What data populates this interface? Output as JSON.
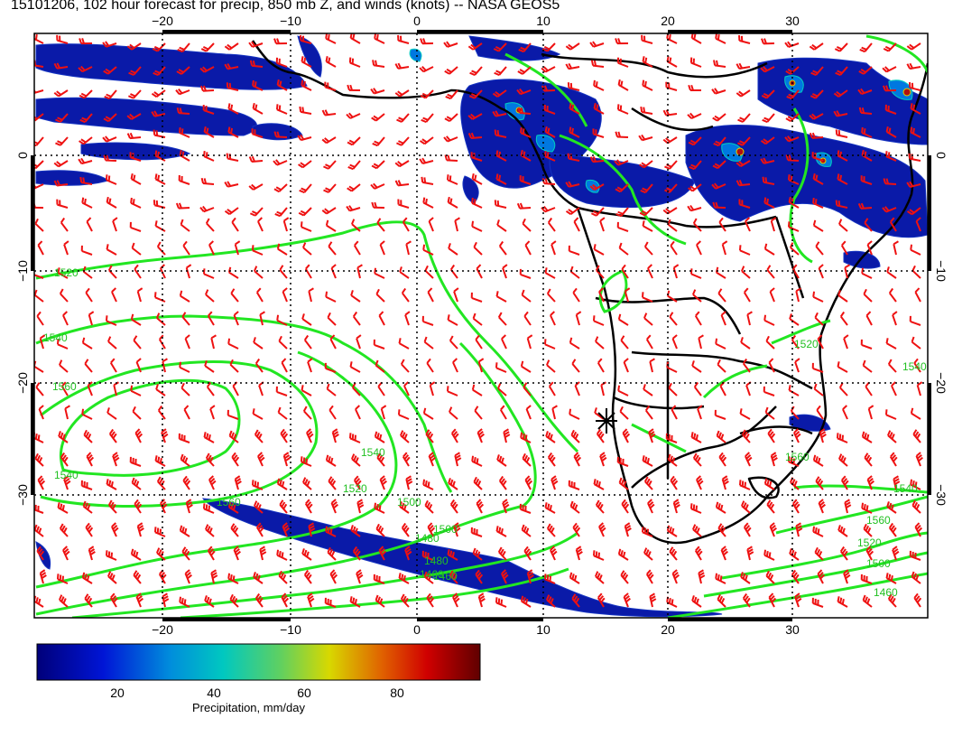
{
  "title": "15101206, 102 hour forecast for precip, 850 mb Z, and winds (knots) -- NASA GEOS5",
  "map": {
    "lon_ticks": [
      "−20",
      "−10",
      "0",
      "10",
      "20",
      "30"
    ],
    "lat_ticks": [
      "0",
      "−10",
      "−20",
      "−30"
    ],
    "contour_labels": [
      "1520",
      "1540",
      "1560",
      "1540",
      "1540",
      "1520",
      "1560",
      "1500",
      "1480",
      "1460",
      "1560",
      "1540",
      "1520",
      "1500",
      "1480",
      "1460",
      "1540",
      "1560",
      "1520",
      "1500",
      "1460"
    ],
    "colors": {
      "contour": "#22e622",
      "wind": "#ee1111",
      "coast": "#000000",
      "precip_low": "#0a1a9a"
    }
  },
  "colorbar": {
    "ticks": [
      "20",
      "40",
      "60",
      "80"
    ],
    "label": "Precipitation, mm/day",
    "range": [
      0,
      100
    ]
  }
}
